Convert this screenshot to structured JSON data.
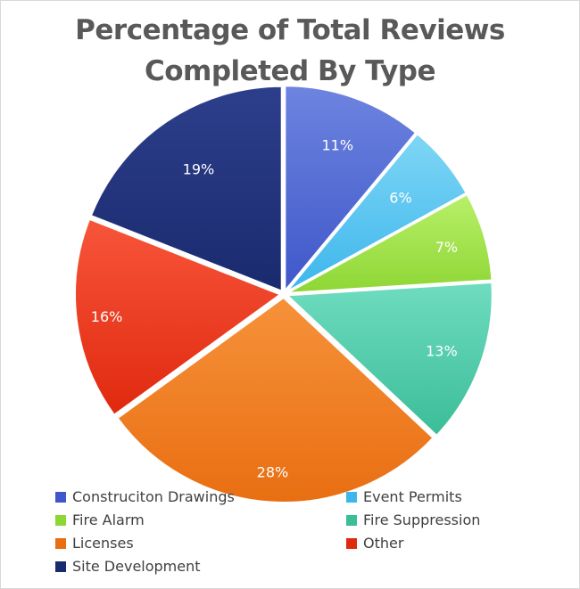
{
  "chart_data": {
    "type": "pie",
    "title_lines": [
      "Percentage of Total Reviews",
      "Completed By Type"
    ],
    "slices": [
      {
        "name": "Construciton Drawings",
        "label": "11%",
        "value": 11,
        "color_light": "#6d84e0",
        "color_dark": "#3f57c9"
      },
      {
        "name": "Event Permits",
        "label": "6%",
        "value": 6,
        "color_light": "#7fd6f5",
        "color_dark": "#3db6ec"
      },
      {
        "name": "Fire Alarm",
        "label": "7%",
        "value": 7,
        "color_light": "#b8f06a",
        "color_dark": "#8ed634"
      },
      {
        "name": "Fire Suppression",
        "label": "13%",
        "value": 13,
        "color_light": "#6fdcc0",
        "color_dark": "#3bbd98"
      },
      {
        "name": "Licenses",
        "label": "28%",
        "value": 28,
        "color_light": "#f6923a",
        "color_dark": "#e96e12"
      },
      {
        "name": "Other",
        "label": "16%",
        "value": 16,
        "color_light": "#f7553a",
        "color_dark": "#e0290f"
      },
      {
        "name": "Site Development",
        "label": "19%",
        "value": 19,
        "color_light": "#2d3f8c",
        "color_dark": "#1a2a6e"
      }
    ],
    "legend_position": "bottom"
  }
}
